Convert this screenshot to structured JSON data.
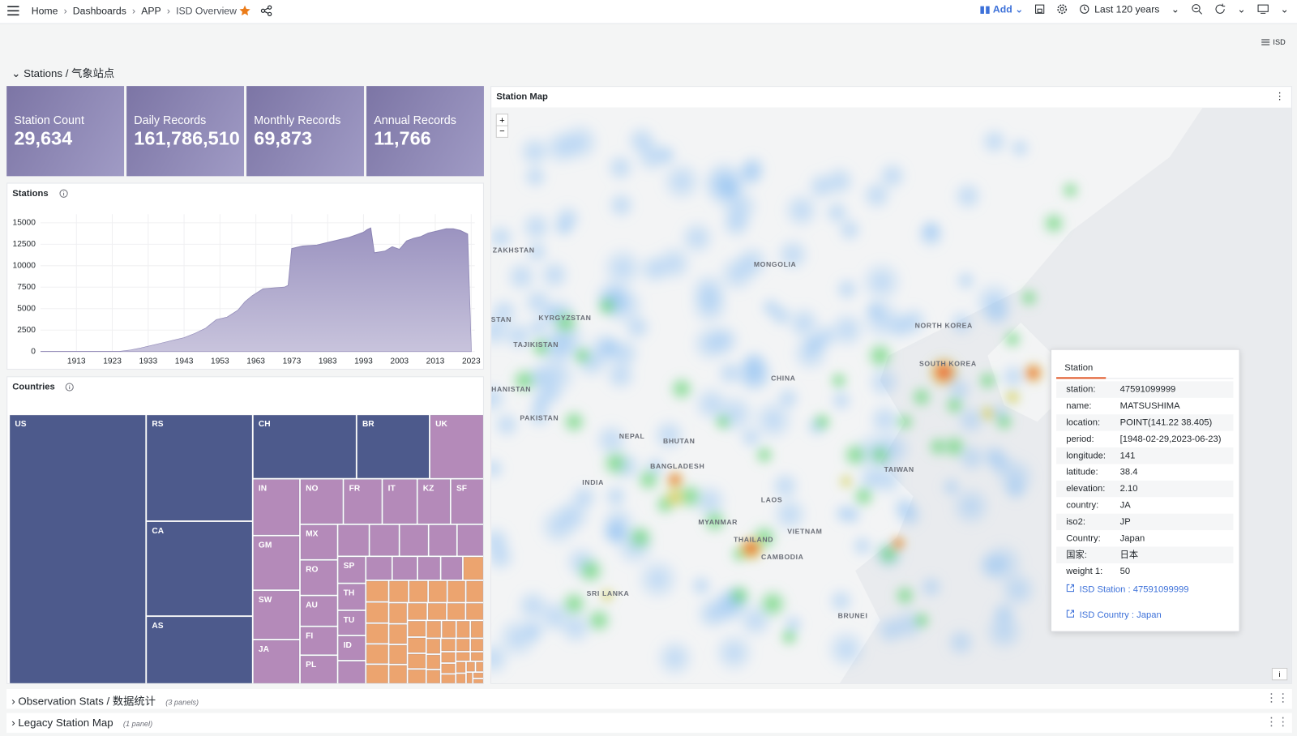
{
  "nav": {
    "breadcrumbs": [
      "Home",
      "Dashboards",
      "APP",
      "ISD Overview"
    ],
    "add": "Add",
    "time_range": "Last 120 years",
    "view_button": "ISD"
  },
  "rows": [
    {
      "title": "Stations / 气象站点"
    },
    {
      "title": "Observation Stats / 数据统计",
      "note": "(3 panels)"
    },
    {
      "title": "Legacy Station Map",
      "note": "(1 panel)"
    }
  ],
  "stats": [
    {
      "title": "Station Count",
      "value": "29,634"
    },
    {
      "title": "Daily Records",
      "value": "161,786,510"
    },
    {
      "title": "Monthly Records",
      "value": "69,873"
    },
    {
      "title": "Annual Records",
      "value": "11,766"
    }
  ],
  "panels": {
    "stations": "Stations",
    "countries": "Countries",
    "map": "Station Map"
  },
  "map": {
    "labels": [
      "ZAKHSTAN",
      "MONGOLIA",
      "KYRGYZSTAN",
      "STAN",
      "TAJIKISTAN",
      "NORTH KOREA",
      "SOUTH KOREA",
      "CHINA",
      "HANISTAN",
      "PAKISTAN",
      "NEPAL",
      "BHUTAN",
      "BANGLADESH",
      "INDIA",
      "TAIWAN",
      "LAOS",
      "MYANMAR",
      "VIETNAM",
      "THAILAND",
      "CAMBODIA",
      "SRI LANKA",
      "BRUNEI"
    ],
    "tooltip": {
      "title": "Station",
      "fields": [
        [
          "station:",
          "47591099999"
        ],
        [
          "name:",
          "MATSUSHIMA"
        ],
        [
          "location:",
          "POINT(141.22 38.405)"
        ],
        [
          "period:",
          "[1948-02-29,2023-06-23)"
        ],
        [
          "longitude:",
          "141"
        ],
        [
          "latitude:",
          "38.4"
        ],
        [
          "elevation:",
          "2.10"
        ],
        [
          "country:",
          "JA"
        ],
        [
          "iso2:",
          "JP"
        ],
        [
          "Country:",
          "Japan"
        ],
        [
          "国家:",
          "日本"
        ],
        [
          "weight 1:",
          "50"
        ]
      ],
      "links": [
        "ISD Station : 47591099999",
        "ISD Country : Japan"
      ]
    }
  },
  "chart_data": [
    {
      "type": "area",
      "color": "#9b93c0",
      "x": [
        1903,
        1925,
        1928,
        1931,
        1934,
        1937,
        1940,
        1943,
        1946,
        1949,
        1952,
        1955,
        1958,
        1960,
        1962,
        1965,
        1968,
        1971,
        1972,
        1973,
        1976,
        1980,
        1983,
        1986,
        1989,
        1991,
        1993,
        1994,
        1995,
        1996,
        1999,
        2001,
        2003,
        2005,
        2007,
        2009,
        2011,
        2013,
        2016,
        2018,
        2020,
        2022,
        2023
      ],
      "values": [
        0,
        0,
        150,
        400,
        700,
        1000,
        1300,
        1600,
        2100,
        2700,
        3700,
        4000,
        4800,
        5800,
        6500,
        7300,
        7400,
        7500,
        7700,
        12000,
        12300,
        12400,
        12700,
        13000,
        13300,
        13600,
        13900,
        14200,
        14400,
        11500,
        11700,
        12200,
        11900,
        12900,
        13200,
        13400,
        13800,
        14000,
        14300,
        14300,
        14100,
        13700,
        0
      ],
      "xlim": [
        1903,
        2024
      ],
      "ylim": [
        0,
        16000
      ],
      "xticks": [
        1913,
        1923,
        1933,
        1943,
        1953,
        1963,
        1973,
        1983,
        1993,
        2003,
        2013,
        2023
      ],
      "yticks": [
        0,
        2500,
        5000,
        7500,
        10000,
        12500,
        15000
      ],
      "grid": true
    },
    {
      "type": "treemap",
      "series": [
        {
          "color": "#4d5a8c",
          "categories": [
            "US",
            "RS",
            "CA",
            "AS",
            "CH",
            "BR"
          ],
          "values": [
            7300,
            2250,
            2000,
            1430,
            1320,
            930
          ]
        },
        {
          "color": "#b48ab9",
          "categories": [
            "UK",
            "IN",
            "GM",
            "SW",
            "JA",
            "NO",
            "FR",
            "IT",
            "KZ",
            "SF",
            "MX",
            "RO",
            "AU",
            "FI",
            "PL",
            null,
            null,
            null,
            null,
            null,
            "SP",
            "TH",
            "TU",
            "ID",
            null,
            null,
            null,
            null,
            null
          ],
          "values": [
            690,
            530,
            510,
            460,
            415,
            390,
            350,
            315,
            300,
            300,
            265,
            265,
            230,
            215,
            215,
            200,
            190,
            185,
            180,
            170,
            150,
            150,
            140,
            140,
            130,
            125,
            120,
            110,
            105
          ]
        },
        {
          "color": "#eca46f",
          "categories": [
            null,
            null,
            null,
            null,
            null,
            null,
            null,
            null,
            null,
            null,
            null,
            null,
            null,
            null,
            null,
            null,
            null,
            null,
            null,
            null,
            null,
            null,
            null,
            null,
            null,
            null,
            null,
            null,
            null,
            null,
            null,
            null,
            null,
            null,
            null,
            null,
            null,
            null,
            null,
            null,
            null,
            null,
            null,
            null,
            null
          ],
          "values": [
            100,
            98,
            96,
            94,
            92,
            90,
            88,
            86,
            84,
            82,
            80,
            78,
            76,
            74,
            72,
            70,
            68,
            66,
            64,
            62,
            60,
            58,
            56,
            54,
            52,
            50,
            48,
            46,
            44,
            42,
            40,
            38,
            36,
            34,
            32,
            30,
            28,
            26,
            24,
            22,
            20,
            18,
            16,
            14,
            12
          ]
        }
      ]
    }
  ]
}
